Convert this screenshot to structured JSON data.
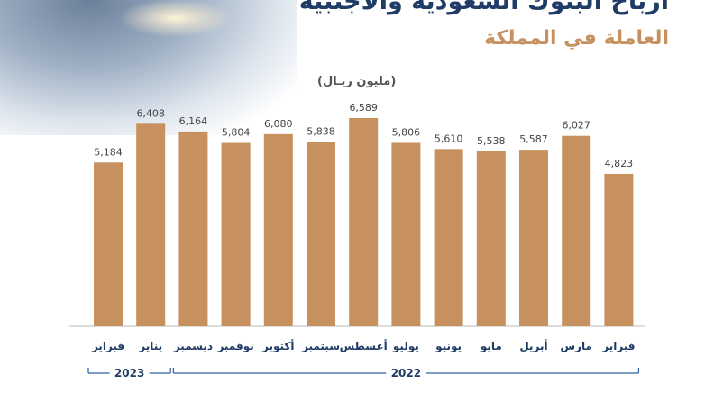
{
  "title": "أرباح البنوك السعودية والأجنبية",
  "subtitle": "العاملة في المملكة",
  "colors": {
    "bar": "#c6915f",
    "title": "#1f3b66",
    "subtitle": "#c6915f",
    "bracket": "#2f5fa3"
  },
  "chart_data": {
    "type": "bar",
    "ylabel": "(مليون ريـال)",
    "categories": [
      "فبراير",
      "مارس",
      "أبريل",
      "مايو",
      "يونيو",
      "يوليو",
      "أغسطس",
      "سبتمبر",
      "أكتوبر",
      "نوفمبر",
      "ديسمبر",
      "يناير",
      "فبراير"
    ],
    "values": [
      4823,
      6027,
      5587,
      5538,
      5610,
      5806,
      6589,
      5838,
      6080,
      5804,
      6164,
      6408,
      5184
    ],
    "value_labels": [
      "4,823",
      "6,027",
      "5,587",
      "5,538",
      "5,610",
      "5,806",
      "6,589",
      "5,838",
      "6,080",
      "5,804",
      "6,164",
      "6,408",
      "5,184"
    ],
    "groups": [
      {
        "label": "2022",
        "from": 0,
        "to": 10
      },
      {
        "label": "2023",
        "from": 11,
        "to": 12
      }
    ],
    "ylim": [
      0,
      6589
    ],
    "grid": false
  }
}
